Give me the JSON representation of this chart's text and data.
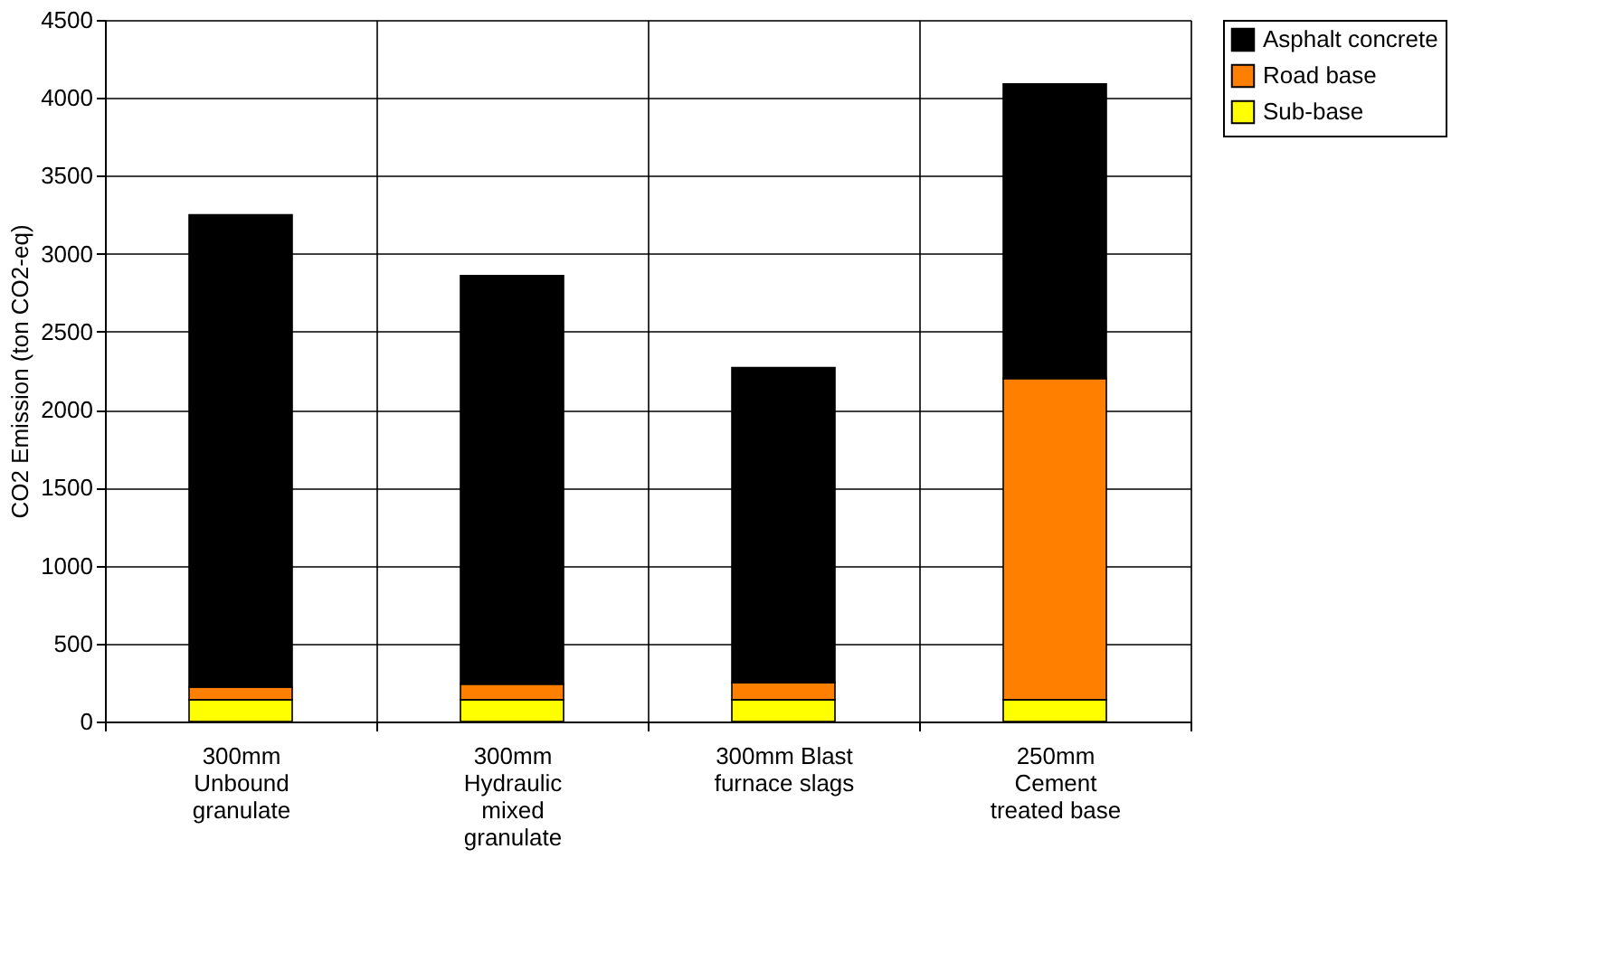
{
  "chart_data": {
    "type": "bar",
    "stacked": true,
    "ylabel": "CO2 Emission (ton CO2-eq)",
    "categories": [
      "300mm Unbound granulate",
      "300mm Hydraulic mixed granulate",
      "300mm Blast furnace slags",
      "250mm Cement treated base"
    ],
    "series": [
      {
        "name": "Sub-base",
        "color": "#ffff00",
        "values": [
          140,
          140,
          140,
          140
        ]
      },
      {
        "name": "Road base",
        "color": "#ff8000",
        "values": [
          80,
          100,
          110,
          2060
        ]
      },
      {
        "name": "Asphalt concrete",
        "color": "#000000",
        "values": [
          3030,
          2620,
          2020,
          1890
        ]
      }
    ],
    "ylim": [
      0,
      4500
    ],
    "yticks": [
      0,
      500,
      1000,
      1500,
      2000,
      2500,
      3000,
      3500,
      4000,
      4500
    ],
    "grid": true,
    "legend": "right"
  }
}
